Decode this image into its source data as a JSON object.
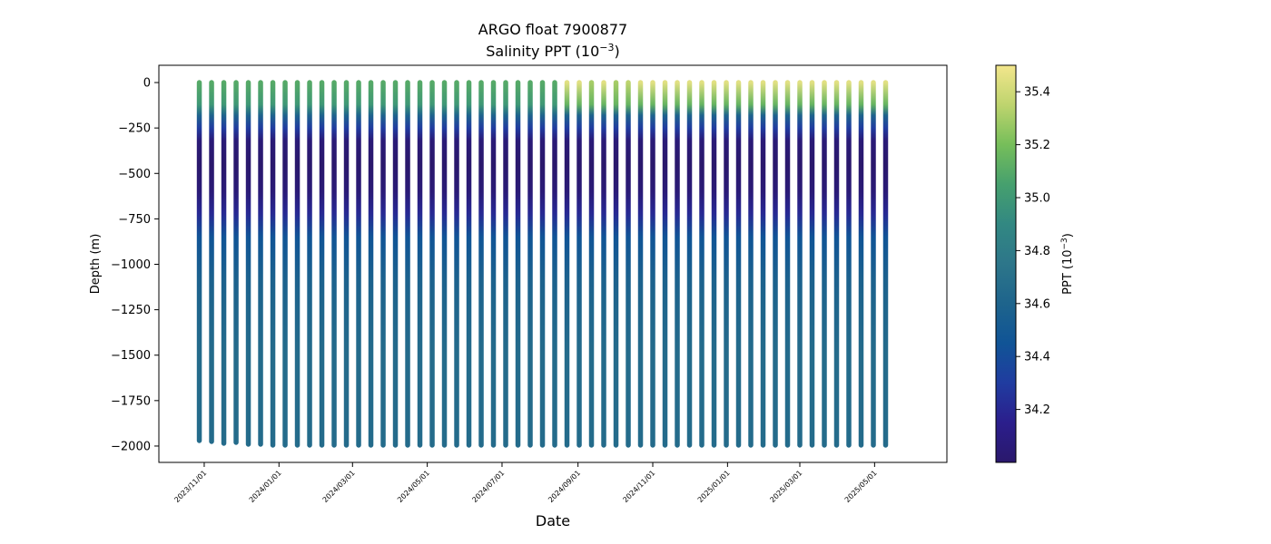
{
  "chart_data": {
    "type": "scatter",
    "title_line1": "ARGO float 7900877",
    "title_line2": "Salinity PPT (10",
    "title_line2_sup": "−3",
    "title_line2_end": ")",
    "xlabel": "Date",
    "ylabel": "Depth (m)",
    "ylim": [
      -2090,
      95
    ],
    "xlim": [
      "2023-09-25",
      "2025-06-29"
    ],
    "grid": false,
    "y_ticks": [
      0,
      -250,
      -500,
      -750,
      -1000,
      -1250,
      -1500,
      -1750,
      -2000
    ],
    "y_tick_labels": [
      "0",
      "−250",
      "−500",
      "−750",
      "−1000",
      "−1250",
      "−1500",
      "−1750",
      "−2000"
    ],
    "x_ticks": [
      "2023-11-01",
      "2024-01-01",
      "2024-03-01",
      "2024-05-01",
      "2024-07-01",
      "2024-09-01",
      "2024-11-01",
      "2025-01-01",
      "2025-03-01",
      "2025-05-01"
    ],
    "x_tick_labels": [
      "2023/11/01",
      "2024/01/01",
      "2024/03/01",
      "2024/05/01",
      "2024/07/01",
      "2024/09/01",
      "2024/11/01",
      "2025/01/01",
      "2025/03/01",
      "2025/05/01"
    ],
    "colorbar": {
      "label": "PPT (10",
      "label_sup": "−3",
      "label_end": ")",
      "vmin": 34.0,
      "vmax": 35.5,
      "ticks": [
        34.2,
        34.4,
        34.6,
        34.8,
        35.0,
        35.2,
        35.4
      ],
      "tick_labels": [
        "34.2",
        "34.4",
        "34.6",
        "34.8",
        "35.0",
        "35.2",
        "35.4"
      ]
    },
    "profiles": {
      "first_date": "2023-10-28",
      "interval_days": 10,
      "count": 57,
      "max_depths": [
        -1970,
        -1975,
        -1985,
        -1980,
        -1990,
        -1990,
        -1995,
        -1995,
        -1995,
        -1995,
        -1995,
        -1995,
        -1995,
        -1995,
        -1995,
        -1995,
        -1995,
        -1995,
        -1995,
        -1995,
        -1995,
        -1995,
        -1995,
        -1995,
        -1995,
        -1995,
        -1995,
        -1995,
        -1995,
        -1995,
        -1995,
        -1995,
        -1995,
        -1995,
        -1995,
        -1995,
        -1995,
        -1995,
        -1995,
        -1995,
        -1995,
        -1995,
        -1995,
        -1995,
        -1995,
        -1995,
        -1995,
        -1995,
        -1995,
        -1995,
        -1995,
        -1995,
        -1995,
        -1995,
        -1995,
        -1995,
        -1995
      ],
      "surface_salinity": [
        35.1,
        35.1,
        35.1,
        35.1,
        35.1,
        35.1,
        35.1,
        35.1,
        35.1,
        35.1,
        35.1,
        35.1,
        35.1,
        35.1,
        35.1,
        35.1,
        35.1,
        35.1,
        35.1,
        35.1,
        35.1,
        35.1,
        35.1,
        35.1,
        35.1,
        35.1,
        35.1,
        35.1,
        35.1,
        35.1,
        35.45,
        35.45,
        35.3,
        35.45,
        35.3,
        35.35,
        35.45,
        35.45,
        35.45,
        35.45,
        35.45,
        35.45,
        35.45,
        35.45,
        35.45,
        35.45,
        35.45,
        35.45,
        35.45,
        35.45,
        35.45,
        35.45,
        35.45,
        35.45,
        35.45,
        35.45,
        35.45
      ],
      "salinity_profile": [
        {
          "depth": 0,
          "salinity": 35.1
        },
        {
          "depth": -120,
          "salinity": 35.0
        },
        {
          "depth": -180,
          "salinity": 34.6
        },
        {
          "depth": -250,
          "salinity": 34.3
        },
        {
          "depth": -320,
          "salinity": 34.05
        },
        {
          "depth": -450,
          "salinity": 34.0
        },
        {
          "depth": -600,
          "salinity": 34.05
        },
        {
          "depth": -720,
          "salinity": 34.2
        },
        {
          "depth": -850,
          "salinity": 34.45
        },
        {
          "depth": -1100,
          "salinity": 34.58
        },
        {
          "depth": -1500,
          "salinity": 34.66
        },
        {
          "depth": -2000,
          "salinity": 34.7
        }
      ]
    }
  }
}
